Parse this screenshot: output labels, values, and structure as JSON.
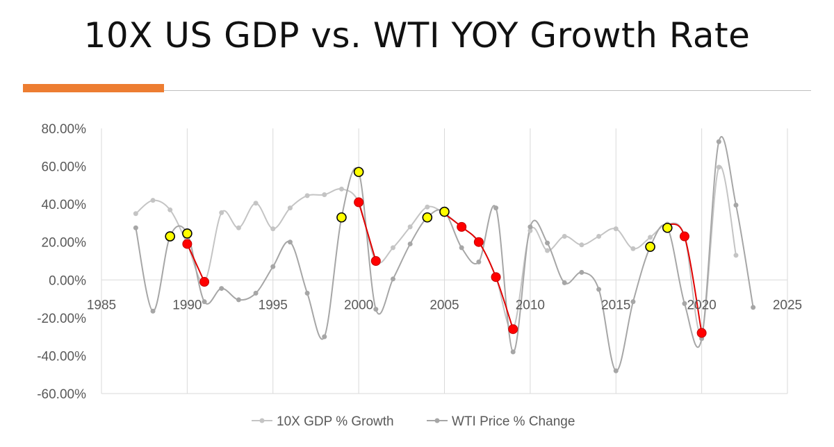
{
  "slide": {
    "title": "10X US GDP vs. WTI YOY Growth Rate",
    "accent_color": "#ED7D31"
  },
  "chart_data": {
    "type": "scatter",
    "title": "10X US GDP vs. WTI YOY Growth Rate",
    "xlabel": "",
    "ylabel": "",
    "xlim": [
      1985,
      2025
    ],
    "ylim": [
      -0.6,
      0.8
    ],
    "x_ticks": [
      1985,
      1990,
      1995,
      2000,
      2005,
      2010,
      2015,
      2020,
      2025
    ],
    "y_ticks": [
      -0.6,
      -0.4,
      -0.2,
      0.0,
      0.2,
      0.4,
      0.6,
      0.8
    ],
    "y_tick_labels": [
      "-60.00%",
      "-40.00%",
      "-20.00%",
      "0.00%",
      "20.00%",
      "40.00%",
      "60.00%",
      "80.00%"
    ],
    "grid": "vertical",
    "legend_position": "bottom",
    "series": [
      {
        "name": "10X GDP % Growth",
        "color": "#c4c4c4",
        "x": [
          1987,
          1988,
          1989,
          1990,
          1991,
          1992,
          1993,
          1994,
          1995,
          1996,
          1997,
          1998,
          1999,
          2000,
          2001,
          2002,
          2003,
          2004,
          2005,
          2006,
          2007,
          2008,
          2009,
          2010,
          2011,
          2012,
          2013,
          2014,
          2015,
          2016,
          2017,
          2018,
          2019,
          2020,
          2021,
          2022
        ],
        "values": [
          0.35,
          0.42,
          0.37,
          0.19,
          -0.01,
          0.355,
          0.275,
          0.405,
          0.27,
          0.38,
          0.445,
          0.45,
          0.48,
          0.41,
          0.1,
          0.17,
          0.28,
          0.385,
          0.35,
          0.28,
          0.2,
          0.015,
          -0.26,
          0.26,
          0.155,
          0.23,
          0.185,
          0.23,
          0.27,
          0.165,
          0.225,
          0.295,
          0.23,
          -0.28,
          0.595,
          0.13
        ]
      },
      {
        "name": "WTI Price % Change",
        "color": "#a6a6a6",
        "x": [
          1987,
          1988,
          1989,
          1990,
          1991,
          1992,
          1993,
          1994,
          1995,
          1996,
          1997,
          1998,
          1999,
          2000,
          2001,
          2002,
          2003,
          2004,
          2005,
          2006,
          2007,
          2008,
          2009,
          2010,
          2011,
          2012,
          2013,
          2014,
          2015,
          2016,
          2017,
          2018,
          2019,
          2020,
          2021,
          2022,
          2023
        ],
        "values": [
          0.275,
          -0.165,
          0.23,
          0.245,
          -0.115,
          -0.045,
          -0.105,
          -0.07,
          0.07,
          0.2,
          -0.07,
          -0.3,
          0.33,
          0.57,
          -0.155,
          0.005,
          0.19,
          0.33,
          0.36,
          0.17,
          0.095,
          0.38,
          -0.38,
          0.28,
          0.195,
          -0.015,
          0.04,
          -0.05,
          -0.48,
          -0.115,
          0.175,
          0.275,
          -0.125,
          -0.31,
          0.73,
          0.395,
          -0.145
        ]
      }
    ],
    "annotations": [
      {
        "name": "GDP highlighted (red)",
        "color": "#ff0000",
        "x": [
          1990,
          1991,
          2000,
          2001,
          2006,
          2007,
          2008,
          2009,
          2019,
          2020
        ],
        "values": [
          0.19,
          -0.01,
          0.41,
          0.1,
          0.28,
          0.2,
          0.015,
          -0.26,
          0.23,
          -0.28
        ]
      },
      {
        "name": "WTI highlighted (yellow)",
        "color": "#ffff00",
        "x": [
          1989,
          1990,
          1999,
          2000,
          2004,
          2005,
          2017,
          2018
        ],
        "values": [
          0.23,
          0.245,
          0.33,
          0.57,
          0.33,
          0.36,
          0.175,
          0.275
        ]
      }
    ],
    "red_segments": [
      [
        1990,
        1991
      ],
      [
        2000,
        2001
      ],
      [
        2005,
        2009
      ],
      [
        2018,
        2020
      ]
    ]
  }
}
